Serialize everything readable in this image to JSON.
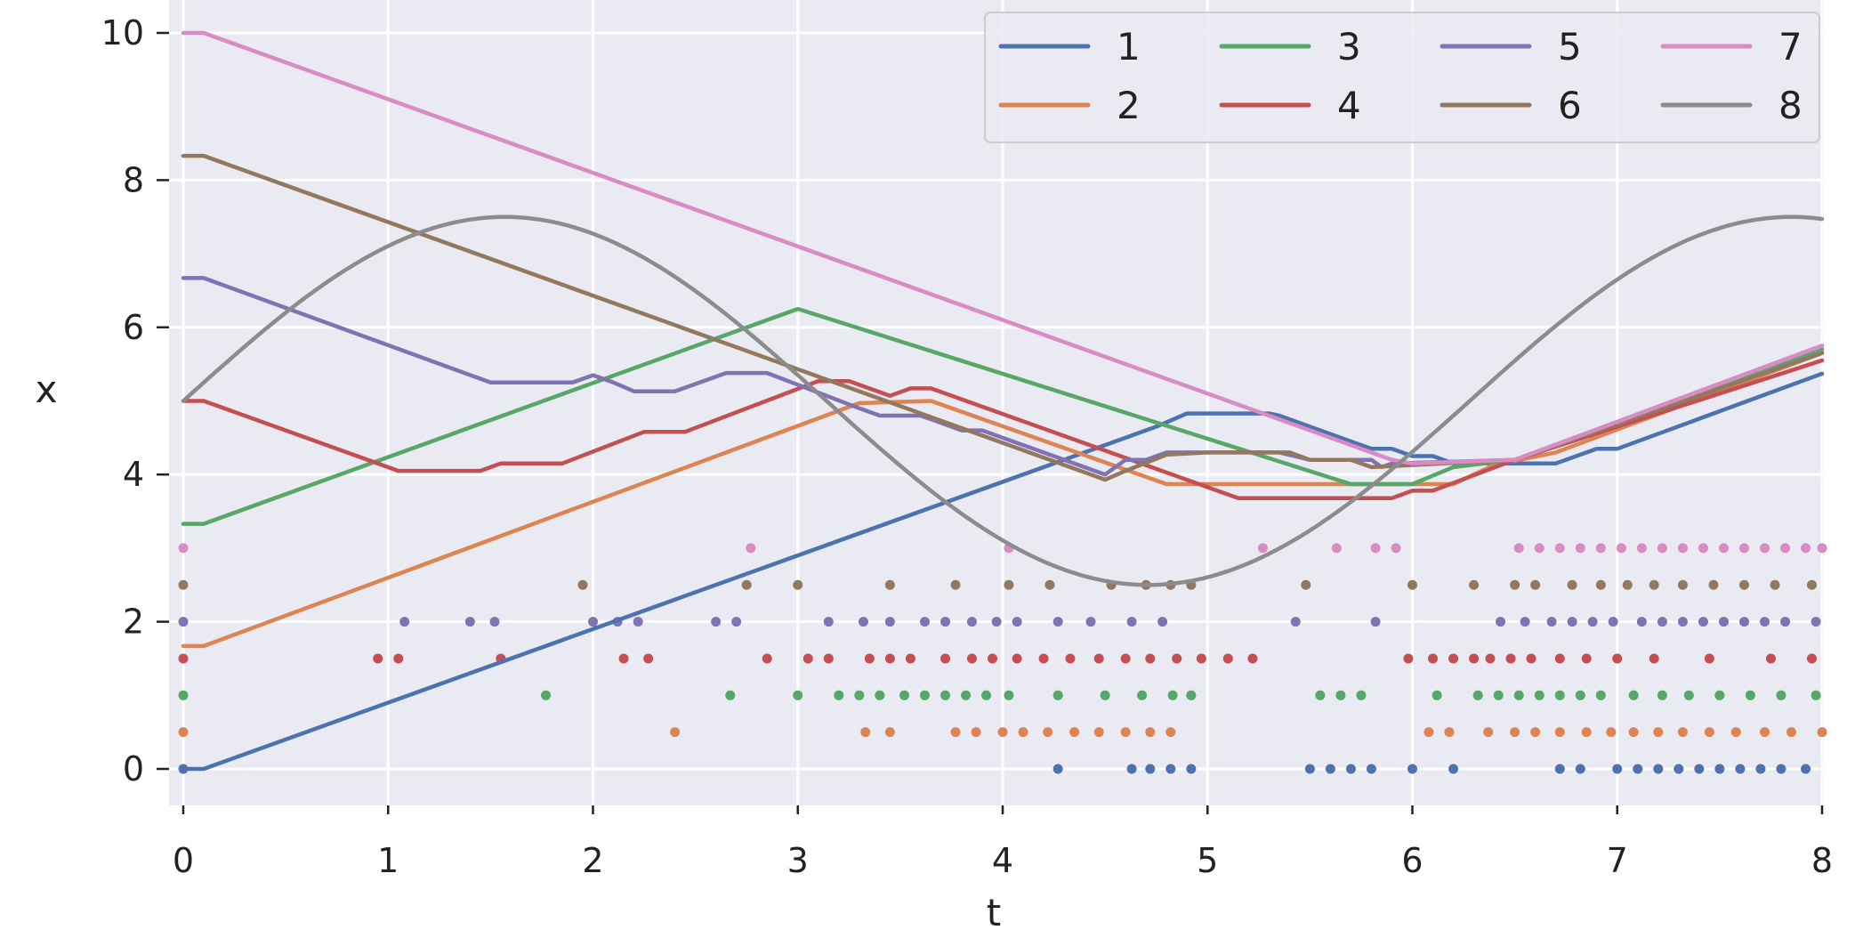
{
  "chart_data": {
    "type": "line",
    "title": "",
    "xlabel": "t",
    "ylabel": "x",
    "xlim": [
      -0.08,
      8.0
    ],
    "ylim": [
      -0.45,
      10.3
    ],
    "xticks": [
      "0",
      "1",
      "2",
      "3",
      "4",
      "5",
      "6",
      "7",
      "8"
    ],
    "yticks": [
      "0",
      "2",
      "4",
      "6",
      "8",
      "10"
    ],
    "grid": true,
    "background": "#eaeaf2",
    "legend": {
      "placement": "top-right",
      "columns": 4
    },
    "series": [
      {
        "name": "1",
        "color": "#4c72b0",
        "line": [
          [
            0,
            0
          ],
          [
            0.1,
            0
          ],
          [
            4.75,
            4.65
          ],
          [
            4.9,
            4.83
          ],
          [
            5.3,
            4.83
          ],
          [
            5.35,
            4.8
          ],
          [
            5.8,
            4.35
          ],
          [
            5.9,
            4.35
          ],
          [
            6.0,
            4.25
          ],
          [
            6.1,
            4.25
          ],
          [
            6.2,
            4.15
          ],
          [
            6.7,
            4.15
          ],
          [
            6.8,
            4.25
          ],
          [
            6.9,
            4.35
          ],
          [
            7.0,
            4.35
          ],
          [
            8.0,
            5.37
          ]
        ],
        "events": [
          0,
          4.27,
          4.63,
          4.72,
          4.82,
          4.92,
          5.5,
          5.6,
          5.7,
          5.8,
          6.0,
          6.2,
          6.72,
          6.82,
          7.0,
          7.1,
          7.2,
          7.3,
          7.4,
          7.5,
          7.6,
          7.7,
          7.8,
          7.92
        ],
        "event_level": 0
      },
      {
        "name": "2",
        "color": "#dd8452",
        "line": [
          [
            0,
            1.67
          ],
          [
            0.1,
            1.67
          ],
          [
            3.3,
            4.97
          ],
          [
            3.65,
            5.0
          ],
          [
            4.8,
            3.87
          ],
          [
            6.2,
            3.87
          ],
          [
            6.4,
            4.13
          ],
          [
            6.7,
            4.3
          ],
          [
            8.0,
            5.65
          ]
        ],
        "events": [
          0,
          2.4,
          3.33,
          3.45,
          3.77,
          3.87,
          4.0,
          4.1,
          4.22,
          4.35,
          4.47,
          4.6,
          4.72,
          4.82,
          6.08,
          6.18,
          6.37,
          6.5,
          6.6,
          6.72,
          6.85,
          6.97,
          7.08,
          7.2,
          7.32,
          7.45,
          7.58,
          7.72,
          7.85,
          8.0
        ],
        "event_level": 0.5
      },
      {
        "name": "3",
        "color": "#55a868",
        "line": [
          [
            0,
            3.33
          ],
          [
            0.1,
            3.33
          ],
          [
            3.0,
            6.25
          ],
          [
            5.7,
            3.87
          ],
          [
            6.0,
            3.87
          ],
          [
            6.2,
            4.1
          ],
          [
            6.5,
            4.2
          ],
          [
            8.0,
            5.7
          ]
        ],
        "events": [
          0,
          1.77,
          2.67,
          3.0,
          3.2,
          3.3,
          3.4,
          3.52,
          3.62,
          3.72,
          3.82,
          3.92,
          4.03,
          4.27,
          4.5,
          4.68,
          4.83,
          4.92,
          5.55,
          5.65,
          5.75,
          6.12,
          6.32,
          6.42,
          6.52,
          6.62,
          6.72,
          6.82,
          6.92,
          7.08,
          7.22,
          7.35,
          7.5,
          7.65,
          7.8,
          7.97
        ],
        "event_level": 1
      },
      {
        "name": "4",
        "color": "#c44e52",
        "line": [
          [
            0,
            5.0
          ],
          [
            0.1,
            5.0
          ],
          [
            1.05,
            4.05
          ],
          [
            1.45,
            4.05
          ],
          [
            1.55,
            4.15
          ],
          [
            1.85,
            4.15
          ],
          [
            2.25,
            4.58
          ],
          [
            2.45,
            4.58
          ],
          [
            3.1,
            5.27
          ],
          [
            3.25,
            5.27
          ],
          [
            3.45,
            5.07
          ],
          [
            3.55,
            5.17
          ],
          [
            3.65,
            5.17
          ],
          [
            5.15,
            3.68
          ],
          [
            5.9,
            3.68
          ],
          [
            6.0,
            3.78
          ],
          [
            6.1,
            3.78
          ],
          [
            6.5,
            4.2
          ],
          [
            8.0,
            5.55
          ]
        ],
        "events": [
          0,
          0.95,
          1.05,
          1.55,
          2.15,
          2.27,
          2.85,
          3.05,
          3.15,
          3.35,
          3.45,
          3.55,
          3.72,
          3.85,
          3.95,
          4.07,
          4.2,
          4.33,
          4.47,
          4.6,
          4.72,
          4.85,
          4.97,
          5.1,
          5.22,
          5.98,
          6.1,
          6.2,
          6.3,
          6.38,
          6.48,
          6.58,
          6.72,
          6.85,
          7.0,
          7.18,
          7.45,
          7.75,
          7.95
        ],
        "event_level": 1.5
      },
      {
        "name": "5",
        "color": "#8172b3",
        "line": [
          [
            0,
            6.67
          ],
          [
            0.1,
            6.67
          ],
          [
            1.5,
            5.25
          ],
          [
            1.9,
            5.25
          ],
          [
            2.0,
            5.35
          ],
          [
            2.1,
            5.25
          ],
          [
            2.2,
            5.13
          ],
          [
            2.4,
            5.13
          ],
          [
            2.65,
            5.38
          ],
          [
            2.85,
            5.38
          ],
          [
            3.3,
            4.9
          ],
          [
            3.4,
            4.8
          ],
          [
            3.6,
            4.8
          ],
          [
            3.7,
            4.7
          ],
          [
            3.8,
            4.6
          ],
          [
            3.9,
            4.6
          ],
          [
            4.5,
            4.0
          ],
          [
            4.6,
            4.2
          ],
          [
            4.7,
            4.2
          ],
          [
            4.8,
            4.3
          ],
          [
            4.95,
            4.3
          ],
          [
            5.35,
            4.3
          ],
          [
            5.5,
            4.2
          ],
          [
            5.8,
            4.2
          ],
          [
            5.85,
            4.1
          ],
          [
            5.9,
            4.15
          ],
          [
            6.5,
            4.2
          ],
          [
            8.0,
            5.75
          ]
        ],
        "events": [
          0,
          1.08,
          1.4,
          1.52,
          2.0,
          2.12,
          2.22,
          2.6,
          2.7,
          3.15,
          3.32,
          3.45,
          3.62,
          3.72,
          3.85,
          3.97,
          4.07,
          4.27,
          4.43,
          4.63,
          4.78,
          5.43,
          5.82,
          6.43,
          6.55,
          6.68,
          6.78,
          6.88,
          6.98,
          7.12,
          7.22,
          7.32,
          7.42,
          7.52,
          7.62,
          7.72,
          7.82,
          7.97
        ],
        "event_level": 2
      },
      {
        "name": "6",
        "color": "#937860",
        "line": [
          [
            0,
            8.33
          ],
          [
            0.1,
            8.33
          ],
          [
            4.5,
            3.93
          ],
          [
            4.6,
            4.05
          ],
          [
            4.8,
            4.27
          ],
          [
            5.0,
            4.3
          ],
          [
            5.4,
            4.3
          ],
          [
            5.5,
            4.2
          ],
          [
            5.7,
            4.2
          ],
          [
            5.8,
            4.1
          ],
          [
            6.5,
            4.2
          ],
          [
            8.0,
            5.65
          ]
        ],
        "events": [
          0,
          1.95,
          2.75,
          3.0,
          3.45,
          3.77,
          4.03,
          4.23,
          4.53,
          4.7,
          4.82,
          4.92,
          5.48,
          6.0,
          6.3,
          6.5,
          6.6,
          6.78,
          6.92,
          7.05,
          7.18,
          7.32,
          7.47,
          7.62,
          7.77,
          7.95
        ],
        "event_level": 2.5
      },
      {
        "name": "7",
        "color": "#da8bc3",
        "line": [
          [
            0,
            10.0
          ],
          [
            0.1,
            10.0
          ],
          [
            5.9,
            4.2
          ],
          [
            6.0,
            4.15
          ],
          [
            6.5,
            4.2
          ],
          [
            8.0,
            5.75
          ]
        ],
        "events": [
          0,
          2.77,
          4.03,
          5.27,
          5.63,
          5.82,
          5.92,
          6.52,
          6.62,
          6.72,
          6.82,
          6.92,
          7.02,
          7.12,
          7.22,
          7.32,
          7.42,
          7.52,
          7.62,
          7.72,
          7.82,
          7.92,
          8.0
        ],
        "event_level": 3
      },
      {
        "name": "8",
        "color": "#8c8c8c",
        "curve": {
          "center": 5.0,
          "amplitude": 2.5,
          "period": 6.28,
          "phase": 0
        },
        "events": [],
        "event_level": null
      }
    ]
  }
}
